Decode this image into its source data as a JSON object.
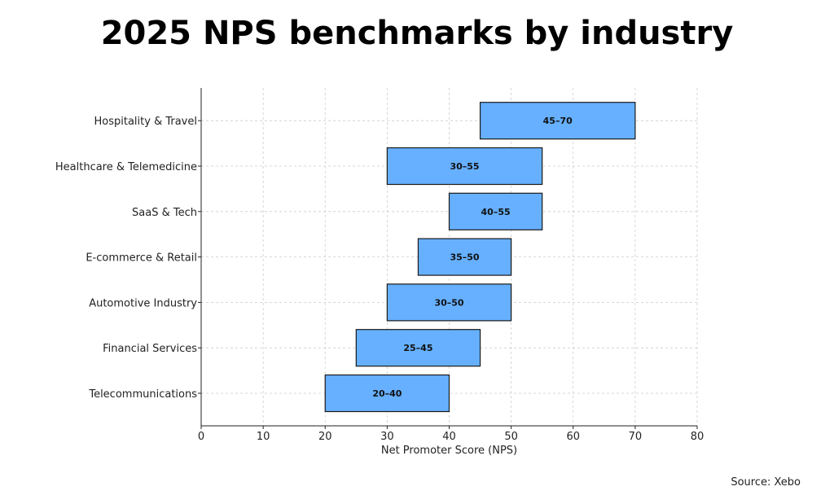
{
  "chart_data": {
    "type": "bar",
    "orientation": "horizontal-range",
    "title": "2025 NPS benchmarks by industry",
    "xlabel": "Net Promoter Score (NPS)",
    "ylabel": "",
    "xlim": [
      0,
      80
    ],
    "xticks": [
      0,
      10,
      20,
      30,
      40,
      50,
      60,
      70,
      80
    ],
    "grid": true,
    "bar_color": "#66b0ff",
    "edge_color": "#1a1a1a",
    "categories": [
      "Telecommunications",
      "Financial Services",
      "Automotive Industry",
      "E-commerce & Retail",
      "SaaS & Tech",
      "Healthcare & Telemedicine",
      "Hospitality & Travel"
    ],
    "ranges": [
      [
        20,
        40
      ],
      [
        25,
        45
      ],
      [
        30,
        50
      ],
      [
        35,
        50
      ],
      [
        40,
        55
      ],
      [
        30,
        55
      ],
      [
        45,
        70
      ]
    ],
    "labels": [
      "20–40",
      "25–45",
      "30–50",
      "35–50",
      "40–55",
      "30–55",
      "45–70"
    ]
  },
  "source": "Source: Xebo"
}
